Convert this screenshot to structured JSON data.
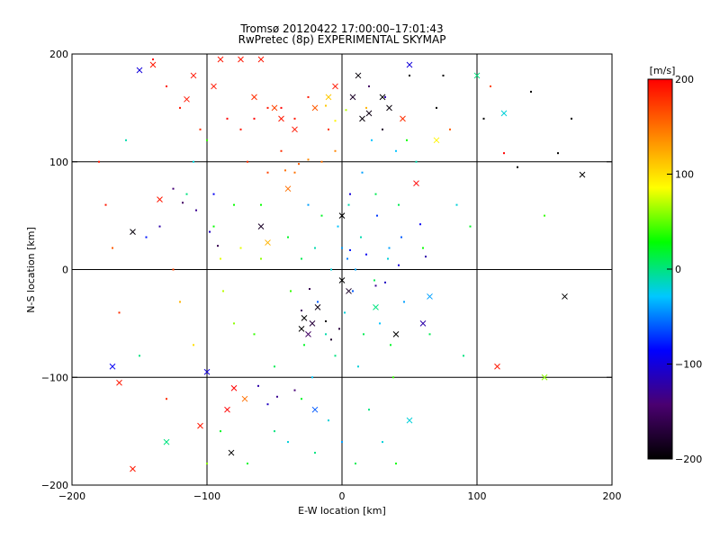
{
  "chart_data": {
    "type": "scatter",
    "title": "Tromsø 20120422 17:00:00–17:01:43",
    "subtitle": "RwPretec (8p) EXPERIMENTAL SKYMAP",
    "xlabel": "E-W location [km]",
    "ylabel": "N-S location [km]",
    "xlim": [
      -200,
      200
    ],
    "ylim": [
      -200,
      200
    ],
    "x_ticks": [
      -200,
      -100,
      0,
      100,
      200
    ],
    "y_ticks": [
      -200,
      -100,
      0,
      100,
      200
    ],
    "x_tick_labels": [
      "−200",
      "−100",
      "0",
      "100",
      "200"
    ],
    "y_tick_labels": [
      "−200",
      "−100",
      "0",
      "100",
      "200"
    ],
    "grid": true,
    "marker_types": [
      "dot",
      "x"
    ],
    "colorbar": {
      "label": "[m/s]",
      "range": [
        -200,
        200
      ],
      "ticks": [
        -200,
        -100,
        0,
        100,
        200
      ],
      "tick_labels": [
        "−200",
        "−100",
        "0",
        "100",
        "200"
      ],
      "colormap": [
        "#000000",
        "#4a0070",
        "#0000ff",
        "#00c8ff",
        "#00ff00",
        "#ffff00",
        "#ff8000",
        "#ff0000"
      ]
    },
    "series": [
      {
        "marker": "x",
        "points": [
          [
            -170,
            -90,
            -90
          ],
          [
            -165,
            -105,
            190
          ],
          [
            -155,
            -185,
            190
          ],
          [
            -150,
            185,
            -100
          ],
          [
            -155,
            35,
            -195
          ],
          [
            -140,
            190,
            190
          ],
          [
            -135,
            65,
            190
          ],
          [
            -130,
            -160,
            0
          ],
          [
            -115,
            158,
            190
          ],
          [
            -110,
            180,
            190
          ],
          [
            -105,
            -145,
            190
          ],
          [
            -100,
            -95,
            -100
          ],
          [
            -95,
            170,
            190
          ],
          [
            -85,
            -130,
            200
          ],
          [
            -80,
            -110,
            200
          ],
          [
            -82,
            -170,
            -200
          ],
          [
            -75,
            195,
            190
          ],
          [
            -72,
            -120,
            150
          ],
          [
            -65,
            160,
            180
          ],
          [
            -60,
            40,
            -180
          ],
          [
            -55,
            25,
            120
          ],
          [
            -50,
            150,
            170
          ],
          [
            -45,
            140,
            190
          ],
          [
            -40,
            75,
            150
          ],
          [
            -35,
            130,
            190
          ],
          [
            -30,
            -55,
            -200
          ],
          [
            -28,
            -45,
            -200
          ],
          [
            -25,
            -60,
            -150
          ],
          [
            -22,
            -50,
            -170
          ],
          [
            -20,
            150,
            160
          ],
          [
            -18,
            -35,
            -190
          ],
          [
            -10,
            160,
            110
          ],
          [
            -5,
            170,
            190
          ],
          [
            0,
            50,
            -200
          ],
          [
            0,
            -10,
            -200
          ],
          [
            5,
            -20,
            -180
          ],
          [
            8,
            160,
            -180
          ],
          [
            12,
            180,
            -195
          ],
          [
            15,
            140,
            -195
          ],
          [
            20,
            145,
            -190
          ],
          [
            25,
            -35,
            0
          ],
          [
            30,
            160,
            -200
          ],
          [
            35,
            150,
            -195
          ],
          [
            40,
            -60,
            -200
          ],
          [
            45,
            140,
            180
          ],
          [
            50,
            190,
            -100
          ],
          [
            55,
            80,
            200
          ],
          [
            60,
            -50,
            -120
          ],
          [
            65,
            -25,
            -40
          ],
          [
            70,
            120,
            90
          ],
          [
            100,
            180,
            0
          ],
          [
            115,
            -90,
            190
          ],
          [
            120,
            145,
            -20
          ],
          [
            150,
            -100,
            60
          ],
          [
            165,
            -25,
            -200
          ],
          [
            178,
            88,
            -200
          ],
          [
            50,
            -140,
            -20
          ],
          [
            -90,
            195,
            190
          ],
          [
            -60,
            195,
            190
          ],
          [
            -20,
            -130,
            -60
          ]
        ]
      },
      {
        "marker": "dot",
        "points": [
          [
            -140,
            195,
            200
          ],
          [
            -130,
            170,
            190
          ],
          [
            -120,
            150,
            190
          ],
          [
            -110,
            100,
            -20
          ],
          [
            -100,
            120,
            40
          ],
          [
            -95,
            70,
            -90
          ],
          [
            -90,
            10,
            80
          ],
          [
            -88,
            -20,
            70
          ],
          [
            -80,
            60,
            30
          ],
          [
            -75,
            130,
            190
          ],
          [
            -70,
            100,
            180
          ],
          [
            -65,
            -60,
            40
          ],
          [
            -60,
            10,
            60
          ],
          [
            -55,
            90,
            170
          ],
          [
            -50,
            -90,
            10
          ],
          [
            -45,
            110,
            180
          ],
          [
            -40,
            30,
            20
          ],
          [
            -38,
            -20,
            40
          ],
          [
            -35,
            90,
            150
          ],
          [
            -30,
            10,
            10
          ],
          [
            -28,
            -70,
            20
          ],
          [
            -25,
            60,
            -40
          ],
          [
            -22,
            -100,
            -30
          ],
          [
            -20,
            20,
            -10
          ],
          [
            -18,
            -30,
            -60
          ],
          [
            -15,
            50,
            20
          ],
          [
            -12,
            -60,
            -10
          ],
          [
            -10,
            130,
            180
          ],
          [
            -8,
            0,
            -20
          ],
          [
            -5,
            -80,
            0
          ],
          [
            -3,
            40,
            -30
          ],
          [
            0,
            20,
            -40
          ],
          [
            2,
            -40,
            -20
          ],
          [
            4,
            10,
            -50
          ],
          [
            6,
            70,
            -100
          ],
          [
            8,
            -20,
            -60
          ],
          [
            10,
            0,
            -40
          ],
          [
            12,
            -90,
            -20
          ],
          [
            14,
            30,
            -10
          ],
          [
            16,
            -60,
            10
          ],
          [
            18,
            150,
            120
          ],
          [
            20,
            170,
            -150
          ],
          [
            22,
            120,
            -30
          ],
          [
            24,
            -10,
            10
          ],
          [
            26,
            50,
            -70
          ],
          [
            28,
            -50,
            -30
          ],
          [
            30,
            130,
            -180
          ],
          [
            32,
            160,
            -120
          ],
          [
            34,
            10,
            -20
          ],
          [
            36,
            -70,
            20
          ],
          [
            38,
            -100,
            40
          ],
          [
            40,
            110,
            -30
          ],
          [
            42,
            60,
            10
          ],
          [
            44,
            30,
            -60
          ],
          [
            46,
            -30,
            -40
          ],
          [
            48,
            120,
            30
          ],
          [
            50,
            180,
            -200
          ],
          [
            55,
            100,
            -10
          ],
          [
            60,
            20,
            30
          ],
          [
            65,
            -60,
            10
          ],
          [
            70,
            150,
            -200
          ],
          [
            75,
            180,
            -200
          ],
          [
            80,
            130,
            160
          ],
          [
            85,
            60,
            -20
          ],
          [
            90,
            -80,
            0
          ],
          [
            95,
            40,
            20
          ],
          [
            105,
            140,
            -200
          ],
          [
            110,
            170,
            170
          ],
          [
            120,
            108,
            200
          ],
          [
            130,
            95,
            -200
          ],
          [
            140,
            165,
            -200
          ],
          [
            150,
            50,
            40
          ],
          [
            160,
            108,
            -200
          ],
          [
            170,
            140,
            -200
          ],
          [
            -180,
            100,
            190
          ],
          [
            -175,
            60,
            190
          ],
          [
            -170,
            20,
            160
          ],
          [
            -165,
            -40,
            180
          ],
          [
            -160,
            120,
            -10
          ],
          [
            -150,
            -80,
            0
          ],
          [
            -145,
            30,
            -80
          ],
          [
            -130,
            -120,
            180
          ],
          [
            -125,
            0,
            170
          ],
          [
            -120,
            -30,
            120
          ],
          [
            -115,
            70,
            0
          ],
          [
            -110,
            -70,
            100
          ],
          [
            -105,
            130,
            180
          ],
          [
            -100,
            -180,
            60
          ],
          [
            -95,
            40,
            30
          ],
          [
            -90,
            -150,
            20
          ],
          [
            -85,
            140,
            200
          ],
          [
            -80,
            -50,
            60
          ],
          [
            -75,
            20,
            80
          ],
          [
            -70,
            -180,
            20
          ],
          [
            -65,
            140,
            200
          ],
          [
            -60,
            60,
            30
          ],
          [
            -55,
            150,
            190
          ],
          [
            -50,
            -150,
            0
          ],
          [
            -45,
            150,
            200
          ],
          [
            -40,
            -160,
            -20
          ],
          [
            -35,
            140,
            190
          ],
          [
            -30,
            -120,
            20
          ],
          [
            -25,
            160,
            190
          ],
          [
            -20,
            -170,
            0
          ],
          [
            -15,
            100,
            150
          ],
          [
            -10,
            -140,
            -20
          ],
          [
            -5,
            110,
            140
          ],
          [
            0,
            -160,
            -40
          ],
          [
            5,
            60,
            -10
          ],
          [
            10,
            -180,
            10
          ],
          [
            15,
            90,
            -40
          ],
          [
            20,
            -130,
            0
          ],
          [
            25,
            70,
            10
          ],
          [
            30,
            -160,
            -20
          ],
          [
            35,
            20,
            -40
          ],
          [
            40,
            -180,
            30
          ],
          [
            -135,
            40,
            -120
          ],
          [
            -125,
            75,
            -140
          ],
          [
            -118,
            62,
            -150
          ],
          [
            -108,
            55,
            -130
          ],
          [
            -98,
            35,
            -110
          ],
          [
            -92,
            22,
            -160
          ],
          [
            -12,
            -48,
            -200
          ],
          [
            -8,
            -65,
            -180
          ],
          [
            -2,
            -55,
            -170
          ],
          [
            -24,
            -18,
            -160
          ],
          [
            -30,
            -38,
            -150
          ],
          [
            25,
            -15,
            -130
          ],
          [
            32,
            -12,
            -110
          ],
          [
            18,
            14,
            -90
          ],
          [
            6,
            18,
            -80
          ],
          [
            42,
            4,
            -100
          ],
          [
            -48,
            -118,
            -130
          ],
          [
            -55,
            -125,
            -110
          ],
          [
            -62,
            -108,
            -120
          ],
          [
            -35,
            -112,
            -140
          ],
          [
            58,
            42,
            -90
          ],
          [
            62,
            12,
            -120
          ],
          [
            -5,
            138,
            90
          ],
          [
            3,
            148,
            70
          ],
          [
            -12,
            152,
            110
          ],
          [
            -25,
            102,
            140
          ],
          [
            -32,
            98,
            160
          ],
          [
            -42,
            92,
            150
          ]
        ]
      }
    ]
  }
}
